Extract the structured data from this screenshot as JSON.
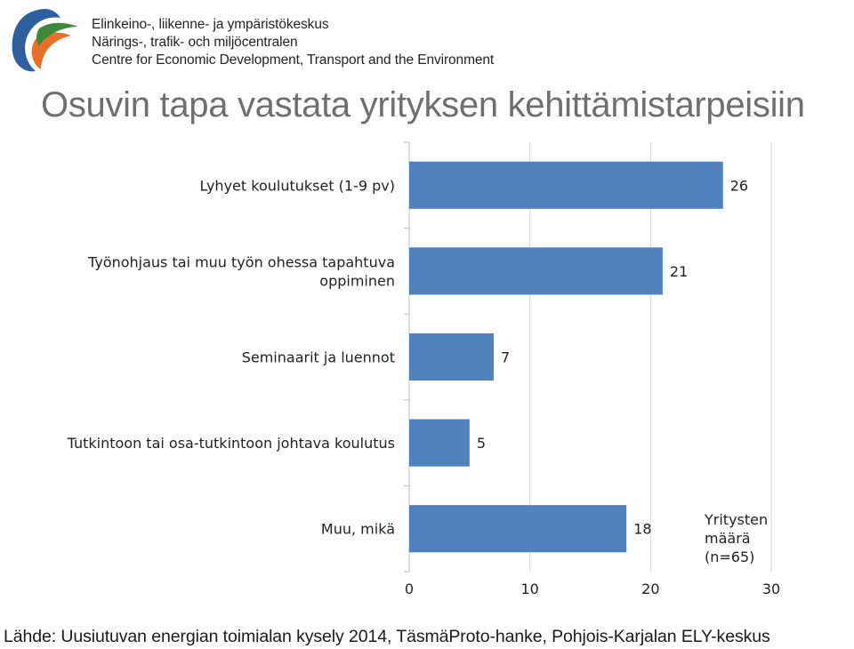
{
  "header": {
    "org_lines": [
      "Elinkeino-, liikenne- ja ympäristökeskus",
      "Närings-, trafik- och miljöcentralen",
      "Centre for Economic Development, Transport and the Environment"
    ],
    "logo_icon": "ely-leaf-logo",
    "colors": {
      "blue": "#2f5f9e",
      "orange": "#e8702a",
      "green": "#3d8b3a"
    }
  },
  "title": "Osuvin tapa vastata yrityksen kehittämistarpeisiin",
  "chart_data": {
    "type": "bar",
    "orientation": "horizontal",
    "categories": [
      [
        "Lyhyet koulutukset (1-9 pv)"
      ],
      [
        "Työnohjaus tai muu työn ohessa tapahtuva",
        "oppiminen"
      ],
      [
        "Seminaarit ja luennot"
      ],
      [
        "Tutkintoon tai osa-tutkintoon johtava koulutus"
      ],
      [
        "Muu, mikä"
      ]
    ],
    "values": [
      26,
      21,
      7,
      5,
      18
    ],
    "value_labels": [
      "26",
      "21",
      "7",
      "5",
      "18"
    ],
    "xlim": [
      0,
      30
    ],
    "xticks": [
      "0",
      "10",
      "20",
      "30"
    ],
    "grid": true,
    "bar_color": "#4f81bd",
    "annotation": [
      "Yritysten",
      "määrä",
      "(n=65)"
    ],
    "annotation_position": "bottom-right"
  },
  "footer": {
    "source": "Lähde: Uusiutuvan energian toimialan kysely 2014, TäsmäProto-hanke, Pohjois-Karjalan ELY-keskus"
  }
}
